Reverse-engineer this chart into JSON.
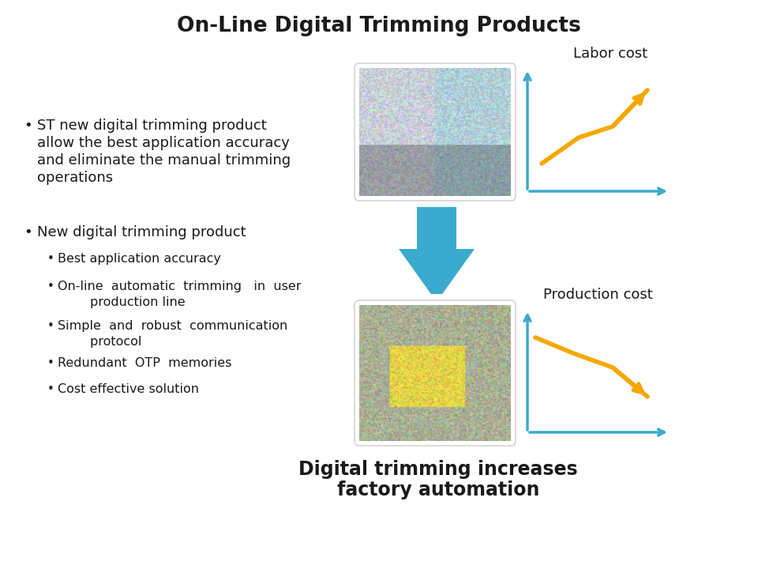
{
  "title": "On-Line Digital Trimming Products",
  "title_fontsize": 19,
  "title_fontweight": "bold",
  "background_color": "#ffffff",
  "text_color": "#1a1a1a",
  "bullet1_lines": [
    "ST new digital trimming product",
    "allow the best application accuracy",
    "and eliminate the manual trimming",
    "operations"
  ],
  "bullet2": "New digital trimming product",
  "sub_bullets": [
    "Best application accuracy",
    "On-line  automatic  trimming   in  user\n      production line",
    "Simple  and  robust  communication\n      protocol",
    "Redundant  OTP  memories",
    "Cost effective solution"
  ],
  "label_labor": "Labor cost",
  "label_production": "Production cost",
  "caption_line1": "Digital trimming increases",
  "caption_line2": "factory automation",
  "caption_fontsize": 17,
  "caption_fontweight": "bold",
  "axis_color": "#3aabcf",
  "trend_color": "#f5a800",
  "down_arrow_color": "#3aabcf",
  "label_fontsize": 13,
  "b1_fontsize": 13,
  "b2_fontsize": 13,
  "sub_fontsize": 11.5
}
